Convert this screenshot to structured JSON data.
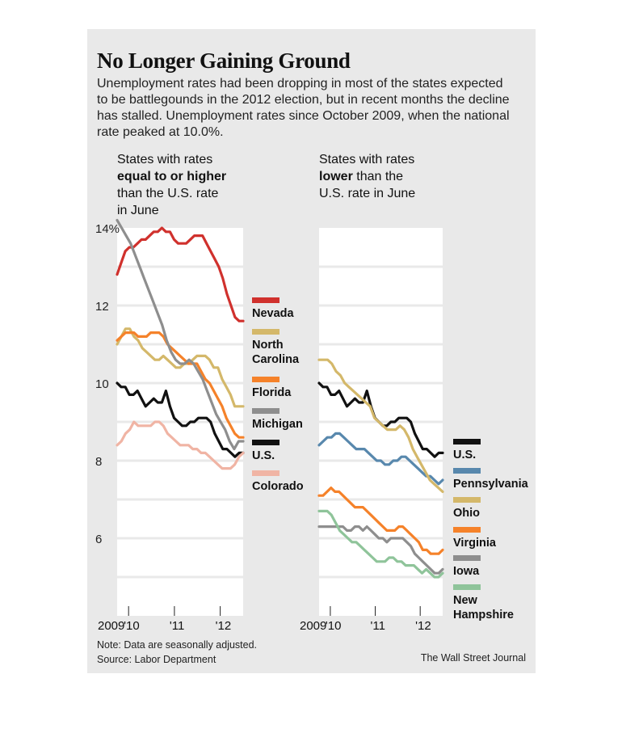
{
  "title": "No Longer Gaining Ground",
  "subtitle": "Unemployment rates had been dropping in most of the states expected to be battlegounds in the 2012 election, but in recent months the decline has stalled. Unemployment rates since October 2009, when the national rate peaked at 10.0%.",
  "panels": {
    "left": {
      "head_line1": "States with rates",
      "head_line2": "equal to or higher",
      "head_line3": "than the U.S. rate",
      "head_line4": "in June"
    },
    "right": {
      "head_line1": "States with rates",
      "head_line2_bold": "lower",
      "head_line2_rest": " than the",
      "head_line3": "U.S. rate in June"
    }
  },
  "note": "Note: Data are seasonally adjusted.",
  "source": "Source: Labor Department",
  "credit": "The Wall Street Journal",
  "colors": {
    "background": "#e9e9e9",
    "nevada": "#d0312d",
    "north_carolina": "#d4b86a",
    "florida": "#f5822a",
    "michigan": "#8e8e8e",
    "us": "#111111",
    "colorado": "#f0b4a4",
    "pennsylvania": "#5888ad",
    "ohio": "#d4b86a",
    "virginia": "#f5822a",
    "iowa": "#8e8e8e",
    "new_hampshire": "#8fc49a"
  },
  "chart_data": [
    {
      "type": "line",
      "ylim": [
        4,
        14
      ],
      "yticks": [
        6,
        8,
        10,
        12,
        14
      ],
      "ytick_labels": [
        "6",
        "8",
        "10",
        "12",
        "14%"
      ],
      "xlim": [
        2009.75,
        2012.5
      ],
      "xtick_labels": [
        "2009",
        "'10",
        "'11",
        "'12"
      ],
      "xtick_values": [
        2009.75,
        2010,
        2011,
        2012
      ],
      "grid": true,
      "legend": "right",
      "series": [
        {
          "name": "Nevada",
          "color": "#d0312d",
          "values": [
            12.8,
            13.1,
            13.4,
            13.5,
            13.5,
            13.6,
            13.7,
            13.7,
            13.8,
            13.9,
            13.9,
            14.0,
            13.9,
            13.9,
            13.7,
            13.6,
            13.6,
            13.6,
            13.7,
            13.8,
            13.8,
            13.8,
            13.6,
            13.4,
            13.2,
            13.0,
            12.7,
            12.3,
            12.0,
            11.7,
            11.6,
            11.6
          ]
        },
        {
          "name": "North Carolina",
          "color": "#d4b86a",
          "values": [
            11.0,
            11.2,
            11.4,
            11.4,
            11.2,
            11.1,
            10.9,
            10.8,
            10.7,
            10.6,
            10.6,
            10.7,
            10.6,
            10.5,
            10.4,
            10.4,
            10.5,
            10.5,
            10.6,
            10.7,
            10.7,
            10.7,
            10.6,
            10.4,
            10.4,
            10.1,
            9.9,
            9.7,
            9.4,
            9.4,
            9.4
          ]
        },
        {
          "name": "Florida",
          "color": "#f5822a",
          "values": [
            11.1,
            11.2,
            11.3,
            11.3,
            11.3,
            11.2,
            11.2,
            11.2,
            11.3,
            11.3,
            11.3,
            11.2,
            11.0,
            10.9,
            10.8,
            10.7,
            10.6,
            10.5,
            10.5,
            10.5,
            10.3,
            10.1,
            10.0,
            9.8,
            9.6,
            9.4,
            9.1,
            8.9,
            8.7,
            8.6,
            8.6
          ]
        },
        {
          "name": "Michigan",
          "color": "#8e8e8e",
          "values": [
            14.2,
            14.0,
            13.8,
            13.6,
            13.3,
            13.0,
            12.7,
            12.4,
            12.1,
            11.8,
            11.5,
            11.1,
            10.8,
            10.6,
            10.5,
            10.5,
            10.6,
            10.5,
            10.3,
            10.1,
            9.8,
            9.5,
            9.2,
            9.0,
            8.8,
            8.5,
            8.3,
            8.5,
            8.5
          ]
        },
        {
          "name": "U.S.",
          "color": "#111111",
          "values": [
            10.0,
            9.9,
            9.9,
            9.7,
            9.7,
            9.8,
            9.6,
            9.4,
            9.5,
            9.6,
            9.5,
            9.5,
            9.8,
            9.4,
            9.1,
            9.0,
            8.9,
            8.9,
            9.0,
            9.0,
            9.1,
            9.1,
            9.1,
            9.0,
            8.7,
            8.5,
            8.3,
            8.3,
            8.2,
            8.1,
            8.2,
            8.2
          ]
        },
        {
          "name": "Colorado",
          "color": "#f0b4a4",
          "values": [
            8.4,
            8.5,
            8.7,
            8.8,
            9.0,
            8.9,
            8.9,
            8.9,
            8.9,
            9.0,
            9.0,
            8.9,
            8.7,
            8.6,
            8.5,
            8.4,
            8.4,
            8.4,
            8.3,
            8.3,
            8.2,
            8.2,
            8.1,
            8.0,
            7.9,
            7.8,
            7.8,
            7.8,
            7.9,
            8.1,
            8.2
          ]
        }
      ]
    },
    {
      "type": "line",
      "ylim": [
        4,
        14
      ],
      "yticks": [
        6,
        8,
        10,
        12,
        14
      ],
      "xlim": [
        2009.75,
        2012.5
      ],
      "xtick_labels": [
        "2009",
        "'10",
        "'11",
        "'12"
      ],
      "xtick_values": [
        2009.75,
        2010,
        2011,
        2012
      ],
      "grid": true,
      "legend": "right",
      "series": [
        {
          "name": "U.S.",
          "color": "#111111",
          "values": [
            10.0,
            9.9,
            9.9,
            9.7,
            9.7,
            9.8,
            9.6,
            9.4,
            9.5,
            9.6,
            9.5,
            9.5,
            9.8,
            9.4,
            9.1,
            9.0,
            8.9,
            8.9,
            9.0,
            9.0,
            9.1,
            9.1,
            9.1,
            9.0,
            8.7,
            8.5,
            8.3,
            8.3,
            8.2,
            8.1,
            8.2,
            8.2
          ]
        },
        {
          "name": "Pennsylvania",
          "color": "#5888ad",
          "values": [
            8.4,
            8.5,
            8.6,
            8.6,
            8.7,
            8.7,
            8.6,
            8.5,
            8.4,
            8.3,
            8.3,
            8.3,
            8.2,
            8.1,
            8.0,
            8.0,
            7.9,
            7.9,
            8.0,
            8.0,
            8.1,
            8.1,
            8.0,
            7.9,
            7.8,
            7.7,
            7.6,
            7.6,
            7.5,
            7.4,
            7.5
          ]
        },
        {
          "name": "Ohio",
          "color": "#d4b86a",
          "values": [
            10.6,
            10.6,
            10.6,
            10.5,
            10.3,
            10.2,
            10.0,
            9.9,
            9.8,
            9.7,
            9.6,
            9.5,
            9.4,
            9.1,
            9.0,
            8.9,
            8.8,
            8.8,
            8.8,
            8.9,
            8.8,
            8.6,
            8.3,
            8.1,
            7.9,
            7.7,
            7.5,
            7.4,
            7.3,
            7.2
          ]
        },
        {
          "name": "Virginia",
          "color": "#f5822a",
          "values": [
            7.1,
            7.1,
            7.2,
            7.3,
            7.2,
            7.2,
            7.1,
            7.0,
            6.9,
            6.8,
            6.8,
            6.8,
            6.7,
            6.6,
            6.5,
            6.4,
            6.3,
            6.2,
            6.2,
            6.2,
            6.3,
            6.3,
            6.2,
            6.1,
            6.0,
            5.9,
            5.7,
            5.7,
            5.6,
            5.6,
            5.6,
            5.7
          ]
        },
        {
          "name": "Iowa",
          "color": "#8e8e8e",
          "values": [
            6.3,
            6.3,
            6.3,
            6.3,
            6.3,
            6.3,
            6.3,
            6.2,
            6.2,
            6.3,
            6.3,
            6.2,
            6.3,
            6.2,
            6.1,
            6.0,
            6.0,
            5.9,
            6.0,
            6.0,
            6.0,
            6.0,
            5.9,
            5.8,
            5.6,
            5.5,
            5.4,
            5.3,
            5.2,
            5.1,
            5.1,
            5.2
          ]
        },
        {
          "name": "New Hampshire",
          "color": "#8fc49a",
          "values": [
            6.7,
            6.7,
            6.7,
            6.6,
            6.4,
            6.2,
            6.1,
            6.0,
            5.9,
            5.9,
            5.8,
            5.7,
            5.6,
            5.5,
            5.4,
            5.4,
            5.4,
            5.5,
            5.5,
            5.4,
            5.4,
            5.3,
            5.3,
            5.3,
            5.2,
            5.1,
            5.2,
            5.1,
            5.0,
            5.0,
            5.1
          ]
        }
      ]
    }
  ],
  "legend_left": [
    {
      "key": "nevada",
      "line1": "Nevada",
      "line2": ""
    },
    {
      "key": "north_carolina",
      "line1": "North",
      "line2": "Carolina"
    },
    {
      "key": "florida",
      "line1": "Florida",
      "line2": ""
    },
    {
      "key": "michigan",
      "line1": "Michigan",
      "line2": ""
    },
    {
      "key": "us",
      "line1": "U.S.",
      "line2": ""
    },
    {
      "key": "colorado",
      "line1": "Colorado",
      "line2": ""
    }
  ],
  "legend_right": [
    {
      "key": "us",
      "line1": "U.S.",
      "line2": ""
    },
    {
      "key": "pennsylvania",
      "line1": "Pennsylvania",
      "line2": ""
    },
    {
      "key": "ohio",
      "line1": "Ohio",
      "line2": ""
    },
    {
      "key": "virginia",
      "line1": "Virginia",
      "line2": ""
    },
    {
      "key": "iowa",
      "line1": "Iowa",
      "line2": ""
    },
    {
      "key": "new_hampshire",
      "line1": "New",
      "line2": "Hampshire"
    }
  ]
}
